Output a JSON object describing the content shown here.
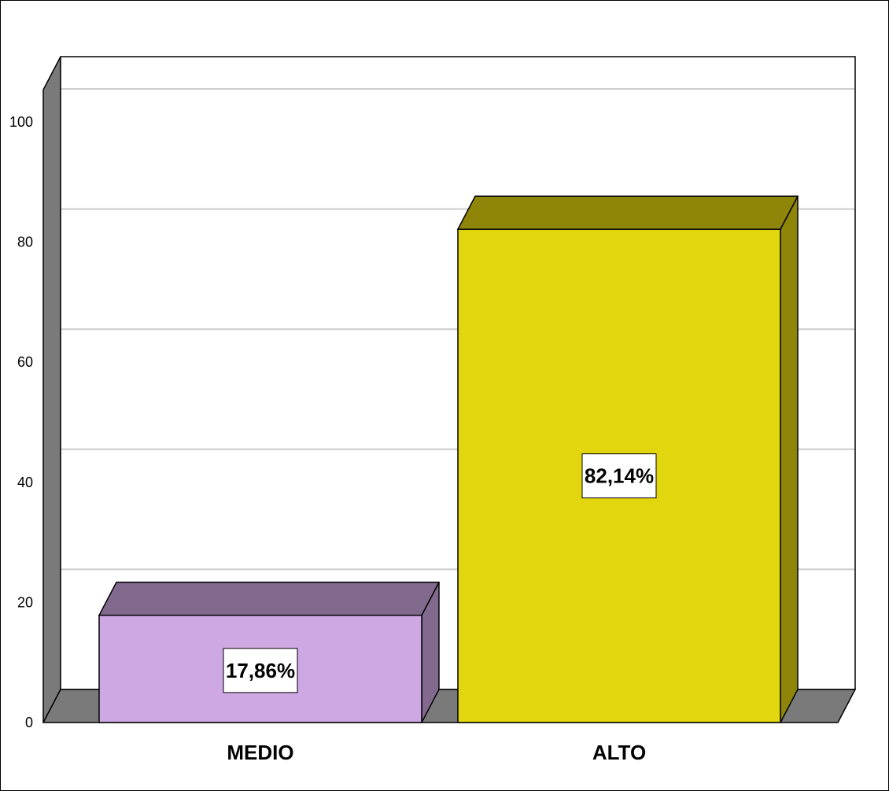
{
  "chart_data": {
    "type": "bar",
    "categories": [
      "MEDIO",
      "ALTO"
    ],
    "values": [
      17.86,
      82.14
    ],
    "data_labels": [
      "17,86%",
      "82,14%"
    ],
    "colors": {
      "front": [
        "#cda8e3",
        "#e2d70e"
      ],
      "top": [
        "#826a8f",
        "#8f8508"
      ],
      "side": [
        "#826a8f",
        "#8f8508"
      ],
      "wall": "#7a7a7a",
      "gridline": "#cccccc"
    },
    "yticks": [
      0,
      20,
      40,
      60,
      80,
      100
    ],
    "ylim": [
      0,
      105
    ],
    "grid": true,
    "title": "",
    "xlabel": "",
    "ylabel": ""
  }
}
